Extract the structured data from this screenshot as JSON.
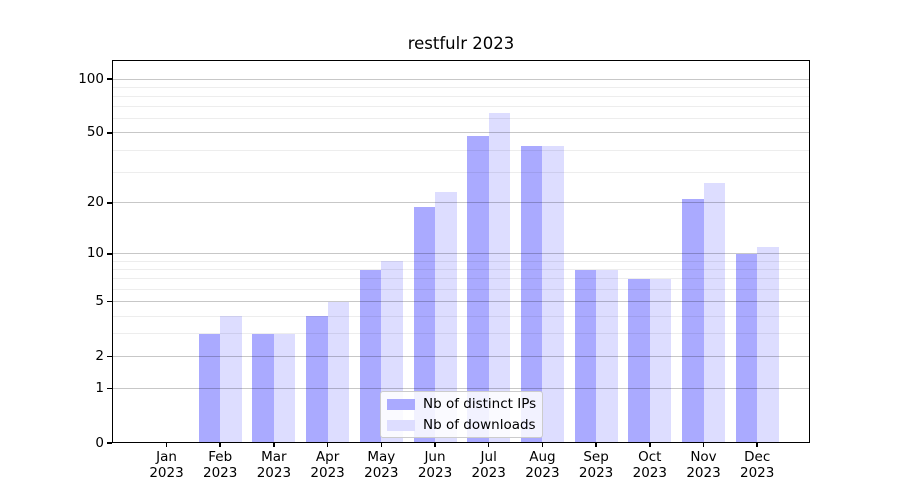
{
  "chart_data": {
    "type": "bar",
    "title": "restfulr 2023",
    "categories": [
      "Jan",
      "Feb",
      "Mar",
      "Apr",
      "May",
      "Jun",
      "Jul",
      "Aug",
      "Sep",
      "Oct",
      "Nov",
      "Dec"
    ],
    "x_year": "2023",
    "series": [
      {
        "name": "Nb of distinct IPs",
        "color": "#aaaaff",
        "values": [
          0,
          3,
          3,
          4,
          8,
          19,
          48,
          42,
          8,
          7,
          21,
          10
        ]
      },
      {
        "name": "Nb of downloads",
        "color": "#ddddff",
        "values": [
          0,
          4,
          3,
          5,
          9,
          23,
          65,
          42,
          8,
          7,
          26,
          11
        ]
      }
    ],
    "y_axis": {
      "scale": "log1p",
      "major_ticks": [
        100,
        50,
        20,
        10,
        5,
        2,
        1,
        0
      ],
      "minor_ticks": [
        3,
        4,
        6,
        7,
        8,
        9,
        30,
        40,
        60,
        70,
        80,
        90
      ],
      "ylim": [
        0,
        127
      ]
    },
    "legend": {
      "position": "lower-center"
    },
    "grid": true,
    "colors": {
      "axis": "#000000",
      "major_grid": "#cccccc",
      "minor_grid": "#ededed",
      "background": "#ffffff"
    }
  }
}
